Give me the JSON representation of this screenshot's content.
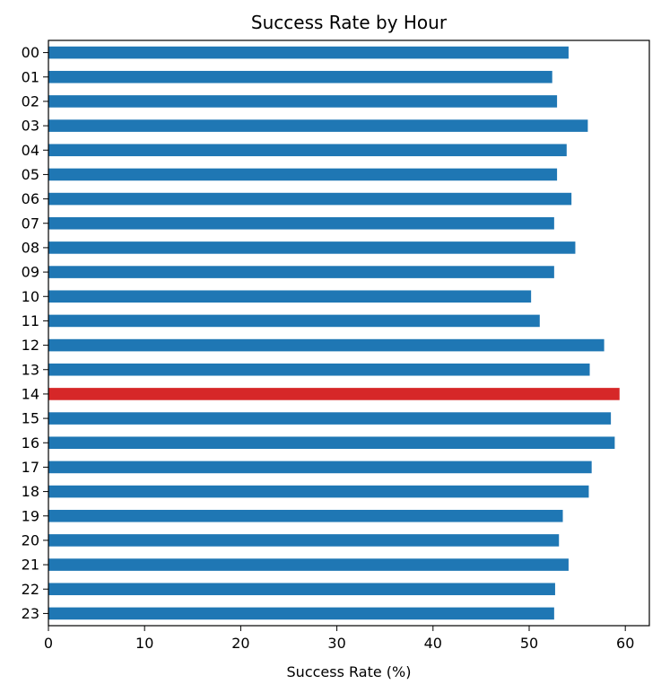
{
  "chart_data": {
    "type": "bar",
    "orientation": "horizontal",
    "title": "Success Rate by Hour",
    "xlabel": "Success Rate (%)",
    "ylabel": "",
    "xlim": [
      0,
      62.5
    ],
    "xticks": [
      0,
      10,
      20,
      30,
      40,
      50,
      60
    ],
    "grid": false,
    "categories": [
      "00",
      "01",
      "02",
      "03",
      "04",
      "05",
      "06",
      "07",
      "08",
      "09",
      "10",
      "11",
      "12",
      "13",
      "14",
      "15",
      "16",
      "17",
      "18",
      "19",
      "20",
      "21",
      "22",
      "23"
    ],
    "values": [
      54.1,
      52.4,
      52.9,
      56.1,
      53.9,
      52.9,
      54.4,
      52.6,
      54.8,
      52.6,
      50.2,
      51.1,
      57.8,
      56.3,
      59.4,
      58.5,
      58.9,
      56.5,
      56.2,
      53.5,
      53.1,
      54.1,
      52.7,
      52.6
    ],
    "bar_color": "#1f77b4",
    "highlight_color": "#d62728",
    "highlight_index": 14
  }
}
